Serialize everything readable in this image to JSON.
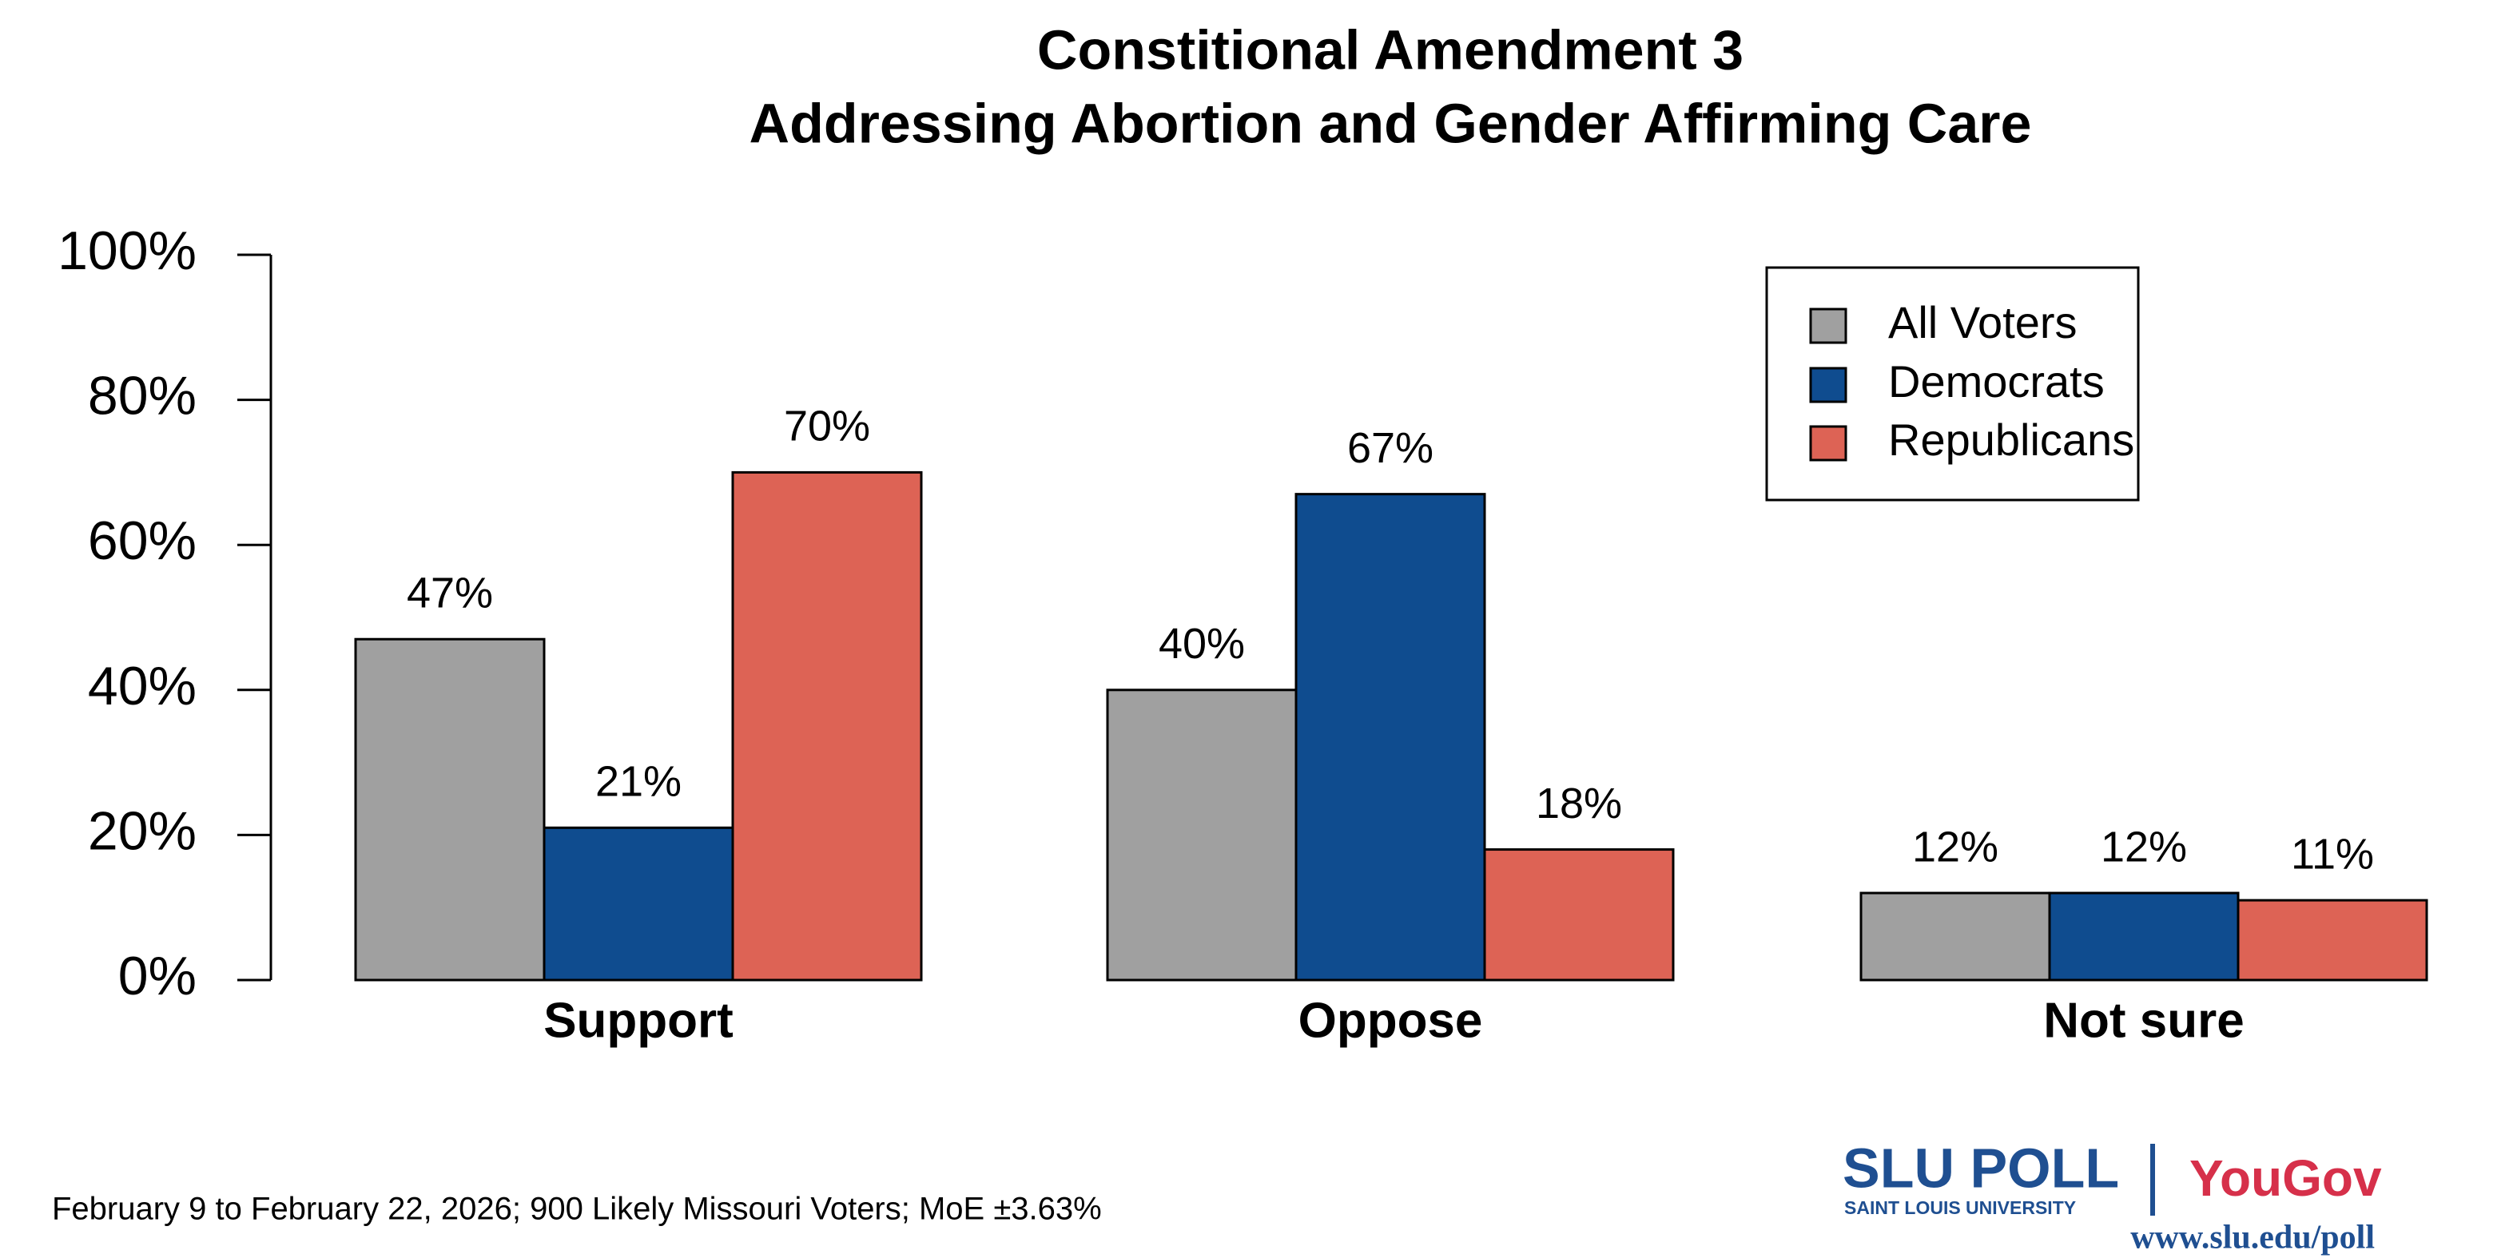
{
  "chart_data": {
    "type": "bar",
    "title": "Constitional Amendment 3",
    "subtitle": "Addressing Abortion and Gender Affirming Care",
    "categories": [
      "Support",
      "Oppose",
      "Not sure"
    ],
    "series": [
      {
        "name": "All Voters",
        "color": "#a0a0a0",
        "values": [
          47,
          40,
          12
        ],
        "value_labels": [
          "47%",
          "40%",
          "12%"
        ]
      },
      {
        "name": "Democrats",
        "color": "#0f4c8f",
        "values": [
          21,
          67,
          12
        ],
        "value_labels": [
          "21%",
          "67%",
          "12%"
        ]
      },
      {
        "name": "Republicans",
        "color": "#dd6355",
        "values": [
          70,
          18,
          11
        ],
        "value_labels": [
          "70%",
          "18%",
          "11%"
        ]
      }
    ],
    "ylim": [
      0,
      100
    ],
    "yticks": [
      {
        "value": 0,
        "label": "0%"
      },
      {
        "value": 20,
        "label": "20%"
      },
      {
        "value": 40,
        "label": "40%"
      },
      {
        "value": 60,
        "label": "60%"
      },
      {
        "value": 80,
        "label": "80%"
      },
      {
        "value": 100,
        "label": "100%"
      }
    ],
    "grid": false,
    "legend": "top-right",
    "source": "February 9 to February 22, 2026; 900 Likely Missouri Voters; MoE ±3.63%",
    "logo": {
      "org": "SLU POLL",
      "sub": "SAINT LOUIS UNIVERSITY",
      "partner": "YouGov",
      "url": "www.slu.edu/poll"
    }
  }
}
